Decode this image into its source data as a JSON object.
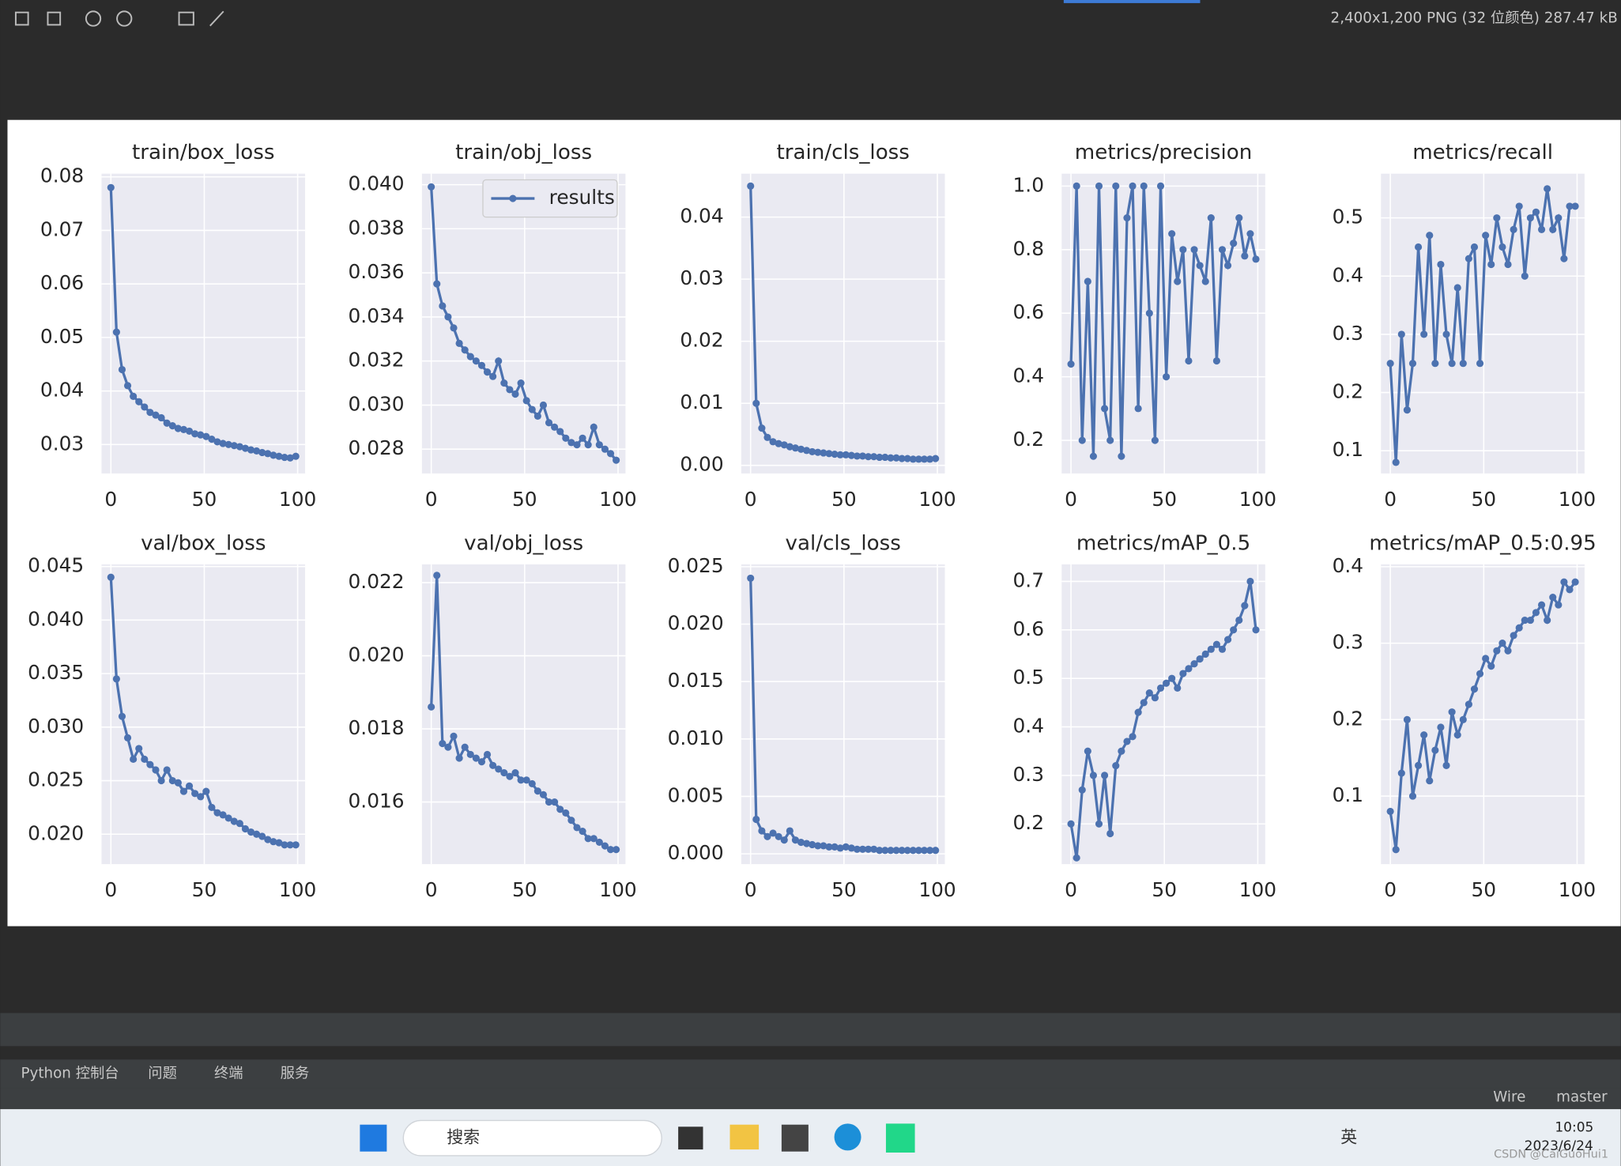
{
  "ui": {
    "image_info": "2,400x1,200 PNG (32 位颜色) 287.47 kB",
    "tabs": [
      "Python 控制台",
      "问题",
      "终端",
      "服务"
    ],
    "status": [
      "Wire",
      "master"
    ],
    "search": "搜索",
    "ime": "英",
    "time": "10:05",
    "date": "2023/6/24",
    "watermark": "CSDN @CaiGuoHui1"
  },
  "chart_data": [
    {
      "type": "line",
      "title": "train/box_loss",
      "color": "#4c72b0",
      "grid": true,
      "xlim": [
        -5,
        104
      ],
      "xticks": [
        0,
        50,
        100
      ],
      "ylim": [
        0.0246,
        0.0806
      ],
      "yticks": [
        0.03,
        0.04,
        0.05,
        0.06,
        0.07,
        0.08
      ],
      "x": [
        0,
        3,
        6,
        9,
        12,
        15,
        18,
        21,
        24,
        27,
        30,
        33,
        36,
        39,
        42,
        45,
        48,
        51,
        54,
        57,
        60,
        63,
        66,
        69,
        72,
        75,
        78,
        81,
        84,
        87,
        90,
        93,
        96,
        99
      ],
      "values": [
        0.078,
        0.051,
        0.044,
        0.041,
        0.039,
        0.038,
        0.037,
        0.036,
        0.0355,
        0.035,
        0.034,
        0.0335,
        0.033,
        0.0328,
        0.0325,
        0.032,
        0.0318,
        0.0315,
        0.031,
        0.0305,
        0.0302,
        0.03,
        0.0298,
        0.0296,
        0.0293,
        0.029,
        0.0288,
        0.0285,
        0.0283,
        0.028,
        0.0278,
        0.0276,
        0.0275,
        0.0278
      ]
    },
    {
      "type": "line",
      "title": "train/obj_loss",
      "grid": true,
      "legend": "upper right",
      "xlim": [
        -5,
        104
      ],
      "xticks": [
        0,
        50,
        100
      ],
      "ylim": [
        0.0269,
        0.0405
      ],
      "yticks": [
        0.028,
        {
          "value": 0.03,
          "label": "0.030"
        },
        0.032,
        0.034,
        0.036,
        0.038,
        {
          "value": 0.04,
          "label": "0.040"
        }
      ],
      "x": [
        0,
        3,
        6,
        9,
        12,
        15,
        18,
        21,
        24,
        27,
        30,
        33,
        36,
        39,
        42,
        45,
        48,
        51,
        54,
        57,
        60,
        63,
        66,
        69,
        72,
        75,
        78,
        81,
        84,
        87,
        90,
        93,
        96,
        99
      ],
      "series": [
        {
          "name": "results",
          "color": "#4c72b0",
          "values": [
            0.0399,
            0.0355,
            0.0345,
            0.034,
            0.0335,
            0.0328,
            0.0325,
            0.0322,
            0.032,
            0.0318,
            0.0315,
            0.0313,
            0.032,
            0.031,
            0.0307,
            0.0305,
            0.031,
            0.0302,
            0.0298,
            0.0295,
            0.03,
            0.0292,
            0.029,
            0.0288,
            0.0285,
            0.0283,
            0.0282,
            0.0285,
            0.0282,
            0.029,
            0.0282,
            0.028,
            0.0278,
            0.0275
          ]
        }
      ]
    },
    {
      "type": "line",
      "title": "train/cls_loss",
      "color": "#4c72b0",
      "grid": true,
      "xlim": [
        -5,
        104
      ],
      "xticks": [
        0,
        50,
        100
      ],
      "ylim": [
        -0.0013,
        0.047
      ],
      "yticks": [
        {
          "value": 0,
          "label": "0.00"
        },
        0.01,
        0.02,
        0.03,
        0.04
      ],
      "x": [
        0,
        3,
        6,
        9,
        12,
        15,
        18,
        21,
        24,
        27,
        30,
        33,
        36,
        39,
        42,
        45,
        48,
        51,
        54,
        57,
        60,
        63,
        66,
        69,
        72,
        75,
        78,
        81,
        84,
        87,
        90,
        93,
        96,
        99
      ],
      "values": [
        0.045,
        0.01,
        0.006,
        0.0045,
        0.0038,
        0.0035,
        0.0033,
        0.003,
        0.0028,
        0.0026,
        0.0024,
        0.0022,
        0.0021,
        0.002,
        0.0019,
        0.0018,
        0.0017,
        0.0017,
        0.0016,
        0.0015,
        0.0015,
        0.0014,
        0.0014,
        0.0013,
        0.0013,
        0.0012,
        0.0012,
        0.0011,
        0.0011,
        0.001,
        0.001,
        0.001,
        0.001,
        0.0011
      ]
    },
    {
      "type": "line",
      "title": "metrics/precision",
      "color": "#4c72b0",
      "grid": true,
      "xlim": [
        -5,
        104
      ],
      "xticks": [
        0,
        50,
        100
      ],
      "ylim": [
        0.096,
        1.039
      ],
      "yticks": [
        0.2,
        0.4,
        0.6,
        0.8,
        {
          "value": 1,
          "label": "1.0"
        }
      ],
      "x": [
        0,
        3,
        6,
        9,
        12,
        15,
        18,
        21,
        24,
        27,
        30,
        33,
        36,
        39,
        42,
        45,
        48,
        51,
        54,
        57,
        60,
        63,
        66,
        69,
        72,
        75,
        78,
        81,
        84,
        87,
        90,
        93,
        96,
        99
      ],
      "values": [
        0.44,
        1.0,
        0.2,
        0.7,
        0.15,
        1.0,
        0.3,
        0.2,
        1.0,
        0.15,
        0.9,
        1.0,
        0.3,
        1.0,
        0.6,
        0.2,
        1.0,
        0.4,
        0.85,
        0.7,
        0.8,
        0.45,
        0.8,
        0.75,
        0.7,
        0.9,
        0.45,
        0.8,
        0.75,
        0.82,
        0.9,
        0.78,
        0.85,
        0.77
      ]
    },
    {
      "type": "line",
      "title": "metrics/recall",
      "color": "#4c72b0",
      "grid": true,
      "xlim": [
        -5,
        104
      ],
      "xticks": [
        0,
        50,
        100
      ],
      "ylim": [
        0.061,
        0.576
      ],
      "yticks": [
        0.1,
        0.2,
        0.3,
        0.4,
        0.5
      ],
      "x": [
        0,
        3,
        6,
        9,
        12,
        15,
        18,
        21,
        24,
        27,
        30,
        33,
        36,
        39,
        42,
        45,
        48,
        51,
        54,
        57,
        60,
        63,
        66,
        69,
        72,
        75,
        78,
        81,
        84,
        87,
        90,
        93,
        96,
        99
      ],
      "values": [
        0.25,
        0.08,
        0.3,
        0.17,
        0.25,
        0.45,
        0.3,
        0.47,
        0.25,
        0.42,
        0.3,
        0.25,
        0.38,
        0.25,
        0.43,
        0.45,
        0.25,
        0.47,
        0.42,
        0.5,
        0.45,
        0.42,
        0.48,
        0.52,
        0.4,
        0.5,
        0.51,
        0.48,
        0.55,
        0.48,
        0.5,
        0.43,
        0.52,
        0.52
      ]
    },
    {
      "type": "line",
      "title": "val/box_loss",
      "color": "#4c72b0",
      "grid": true,
      "xlim": [
        -5,
        104
      ],
      "xticks": [
        0,
        50,
        100
      ],
      "ylim": [
        0.0172,
        0.0452
      ],
      "yticks": [
        {
          "value": 0.02,
          "label": "0.020"
        },
        0.025,
        {
          "value": 0.03,
          "label": "0.030"
        },
        0.035,
        {
          "value": 0.04,
          "label": "0.040"
        },
        0.045
      ],
      "x": [
        0,
        3,
        6,
        9,
        12,
        15,
        18,
        21,
        24,
        27,
        30,
        33,
        36,
        39,
        42,
        45,
        48,
        51,
        54,
        57,
        60,
        63,
        66,
        69,
        72,
        75,
        78,
        81,
        84,
        87,
        90,
        93,
        96,
        99
      ],
      "values": [
        0.044,
        0.0345,
        0.031,
        0.029,
        0.027,
        0.028,
        0.027,
        0.0265,
        0.026,
        0.025,
        0.026,
        0.025,
        0.0248,
        0.024,
        0.0245,
        0.0238,
        0.0235,
        0.024,
        0.0225,
        0.022,
        0.0218,
        0.0215,
        0.0212,
        0.021,
        0.0205,
        0.0202,
        0.02,
        0.0198,
        0.0195,
        0.0193,
        0.0192,
        0.019,
        0.019,
        0.019
      ]
    },
    {
      "type": "line",
      "title": "val/obj_loss",
      "color": "#4c72b0",
      "grid": true,
      "xlim": [
        -5,
        104
      ],
      "xticks": [
        0,
        50,
        100
      ],
      "ylim": [
        0.0143,
        0.0225
      ],
      "yticks": [
        0.016,
        0.018,
        {
          "value": 0.02,
          "label": "0.020"
        },
        0.022
      ],
      "x": [
        0,
        3,
        6,
        9,
        12,
        15,
        18,
        21,
        24,
        27,
        30,
        33,
        36,
        39,
        42,
        45,
        48,
        51,
        54,
        57,
        60,
        63,
        66,
        69,
        72,
        75,
        78,
        81,
        84,
        87,
        90,
        93,
        96,
        99
      ],
      "values": [
        0.0186,
        0.0222,
        0.0176,
        0.0175,
        0.0178,
        0.0172,
        0.0175,
        0.0173,
        0.0172,
        0.0171,
        0.0173,
        0.017,
        0.0169,
        0.0168,
        0.0167,
        0.0168,
        0.0166,
        0.0166,
        0.0165,
        0.0163,
        0.0162,
        0.016,
        0.016,
        0.0158,
        0.0157,
        0.0155,
        0.0153,
        0.0152,
        0.015,
        0.015,
        0.0149,
        0.0148,
        0.0147,
        0.0147
      ]
    },
    {
      "type": "line",
      "title": "val/cls_loss",
      "color": "#4c72b0",
      "grid": true,
      "xlim": [
        -5,
        104
      ],
      "xticks": [
        0,
        50,
        100
      ],
      "ylim": [
        -0.0009,
        0.0252
      ],
      "yticks": [
        {
          "value": 0,
          "label": "0.000"
        },
        0.005,
        {
          "value": 0.01,
          "label": "0.010"
        },
        0.015,
        {
          "value": 0.02,
          "label": "0.020"
        },
        0.025
      ],
      "x": [
        0,
        3,
        6,
        9,
        12,
        15,
        18,
        21,
        24,
        27,
        30,
        33,
        36,
        39,
        42,
        45,
        48,
        51,
        54,
        57,
        60,
        63,
        66,
        69,
        72,
        75,
        78,
        81,
        84,
        87,
        90,
        93,
        96,
        99
      ],
      "values": [
        0.024,
        0.003,
        0.002,
        0.0015,
        0.0018,
        0.0015,
        0.0012,
        0.002,
        0.0012,
        0.001,
        0.0009,
        0.0008,
        0.0007,
        0.0007,
        0.0006,
        0.0006,
        0.0005,
        0.0006,
        0.0005,
        0.0004,
        0.0004,
        0.0004,
        0.0004,
        0.0003,
        0.0003,
        0.0003,
        0.0003,
        0.0003,
        0.0003,
        0.0003,
        0.0003,
        0.0003,
        0.0003,
        0.0003
      ]
    },
    {
      "type": "line",
      "title": "metrics/mAP_0.5",
      "color": "#4c72b0",
      "grid": true,
      "xlim": [
        -5,
        104
      ],
      "xticks": [
        0,
        50,
        100
      ],
      "ylim": [
        0.117,
        0.735
      ],
      "yticks": [
        0.2,
        0.3,
        0.4,
        0.5,
        0.6,
        0.7
      ],
      "x": [
        0,
        3,
        6,
        9,
        12,
        15,
        18,
        21,
        24,
        27,
        30,
        33,
        36,
        39,
        42,
        45,
        48,
        51,
        54,
        57,
        60,
        63,
        66,
        69,
        72,
        75,
        78,
        81,
        84,
        87,
        90,
        93,
        96,
        99
      ],
      "values": [
        0.2,
        0.13,
        0.27,
        0.35,
        0.3,
        0.2,
        0.3,
        0.18,
        0.32,
        0.35,
        0.37,
        0.38,
        0.43,
        0.45,
        0.47,
        0.46,
        0.48,
        0.49,
        0.5,
        0.48,
        0.51,
        0.52,
        0.53,
        0.54,
        0.55,
        0.56,
        0.57,
        0.56,
        0.58,
        0.6,
        0.62,
        0.65,
        0.7,
        0.6
      ]
    },
    {
      "type": "line",
      "title": "metrics/mAP_0.5:0.95",
      "color": "#4c72b0",
      "grid": true,
      "xlim": [
        -5,
        104
      ],
      "xticks": [
        0,
        50,
        100
      ],
      "ylim": [
        0.011,
        0.403
      ],
      "yticks": [
        0.1,
        0.2,
        0.3,
        0.4
      ],
      "x": [
        0,
        3,
        6,
        9,
        12,
        15,
        18,
        21,
        24,
        27,
        30,
        33,
        36,
        39,
        42,
        45,
        48,
        51,
        54,
        57,
        60,
        63,
        66,
        69,
        72,
        75,
        78,
        81,
        84,
        87,
        90,
        93,
        96,
        99
      ],
      "values": [
        0.08,
        0.03,
        0.13,
        0.2,
        0.1,
        0.14,
        0.18,
        0.12,
        0.16,
        0.19,
        0.14,
        0.21,
        0.18,
        0.2,
        0.22,
        0.24,
        0.26,
        0.28,
        0.27,
        0.29,
        0.3,
        0.29,
        0.31,
        0.32,
        0.33,
        0.33,
        0.34,
        0.35,
        0.33,
        0.36,
        0.35,
        0.38,
        0.37,
        0.38
      ]
    }
  ]
}
